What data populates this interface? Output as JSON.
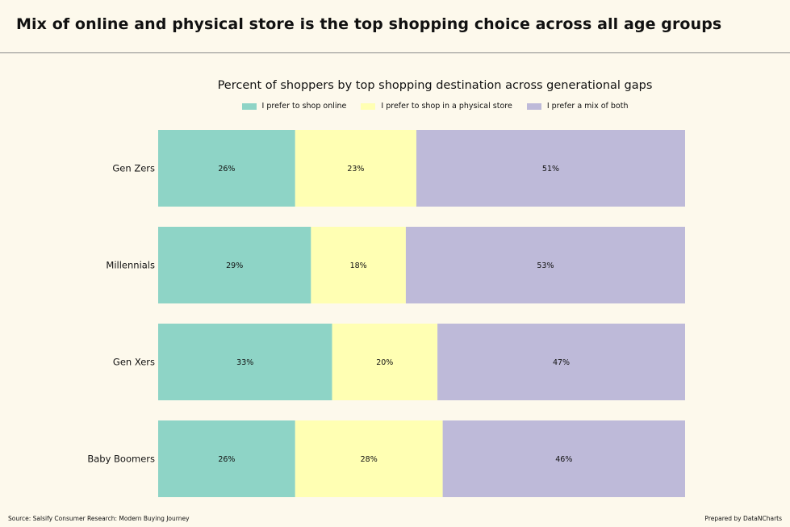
{
  "headline": "Mix of online and physical store is the top shopping choice across all age groups",
  "source": "Source: Salsify Consumer Research: Modern Buying Journey",
  "credit": "Prepared by DataNCharts",
  "chart_data": {
    "type": "bar",
    "orientation": "horizontal",
    "stacked": true,
    "normalized": true,
    "title": "Percent of shoppers by top shopping destination across generational gaps",
    "categories": [
      "Gen Zers",
      "Millennials",
      "Gen Xers",
      "Baby Boomers"
    ],
    "series": [
      {
        "name": "I prefer to shop online",
        "color": "#8ed4c6",
        "values": [
          26,
          29,
          33,
          26
        ]
      },
      {
        "name": "I prefer to shop in a physical store",
        "color": "#ffffb3",
        "values": [
          23,
          18,
          20,
          28
        ]
      },
      {
        "name": "I prefer a mix of both",
        "color": "#bebad9",
        "values": [
          51,
          53,
          47,
          46
        ]
      }
    ],
    "value_suffix": "%",
    "xlim": [
      0,
      100
    ],
    "grid": false,
    "legend": "top-center"
  }
}
